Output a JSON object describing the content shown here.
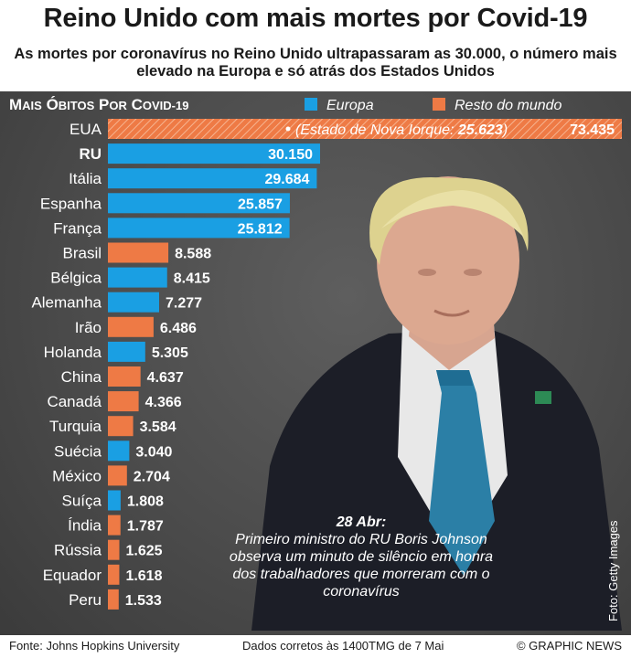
{
  "header": {
    "title": "Reino Unido com mais mortes por Covid-19",
    "subtitle": "As mortes por coronavírus no Reino Unido ultrapassaram as 30.000, o número mais elevado na Europa e só atrás dos Estados Unidos"
  },
  "chart_data": {
    "type": "bar",
    "orientation": "horizontal",
    "title": "MAIS ÓBITOS POR COVID-19",
    "legend": {
      "placement": "top",
      "entries": [
        {
          "label": "Europa",
          "color": "#1a9fe3"
        },
        {
          "label": "Resto do mundo",
          "color": "#ee7a45"
        }
      ]
    },
    "grid": false,
    "categories": [
      "EUA",
      "RU",
      "Itália",
      "Espanha",
      "França",
      "Brasil",
      "Bélgica",
      "Alemanha",
      "Irão",
      "Holanda",
      "China",
      "Canadá",
      "Turquia",
      "Suécia",
      "México",
      "Suíça",
      "Índia",
      "Rússia",
      "Equador",
      "Peru"
    ],
    "values": [
      73435,
      30150,
      29684,
      25857,
      25812,
      8588,
      8415,
      7277,
      6486,
      5305,
      4637,
      4366,
      3584,
      3040,
      2704,
      1808,
      1787,
      1625,
      1618,
      1533
    ],
    "value_labels": [
      "73.435",
      "30.150",
      "29.684",
      "25.857",
      "25.812",
      "8.588",
      "8.415",
      "7.277",
      "6.486",
      "5.305",
      "4.637",
      "4.366",
      "3.584",
      "3.040",
      "2.704",
      "1.808",
      "1.787",
      "1.625",
      "1.618",
      "1.533"
    ],
    "groups": [
      "Resto do mundo",
      "Europa",
      "Europa",
      "Europa",
      "Europa",
      "Resto do mundo",
      "Europa",
      "Europa",
      "Resto do mundo",
      "Europa",
      "Resto do mundo",
      "Resto do mundo",
      "Resto do mundo",
      "Europa",
      "Resto do mundo",
      "Europa",
      "Resto do mundo",
      "Resto do mundo",
      "Resto do mundo",
      "Resto do mundo"
    ],
    "highlight": "RU",
    "annotation": {
      "category": "EUA",
      "label": "Estado de Nova Iorque:",
      "value": 25623,
      "value_label": "25.623"
    },
    "broken_bar": "EUA"
  },
  "caption": {
    "date": "28 Abr:",
    "text": "Primeiro ministro do RU Boris Johnson observa um minuto de silêncio em honra dos trabalhadores que morreram com o coronavírus"
  },
  "photo_credit": "Foto: Getty Images",
  "footer": {
    "source": "Fonte: Johns Hopkins University",
    "note": "Dados corretos às 1400TMG de 7 Mai",
    "brand": "© GRAPHIC NEWS"
  }
}
